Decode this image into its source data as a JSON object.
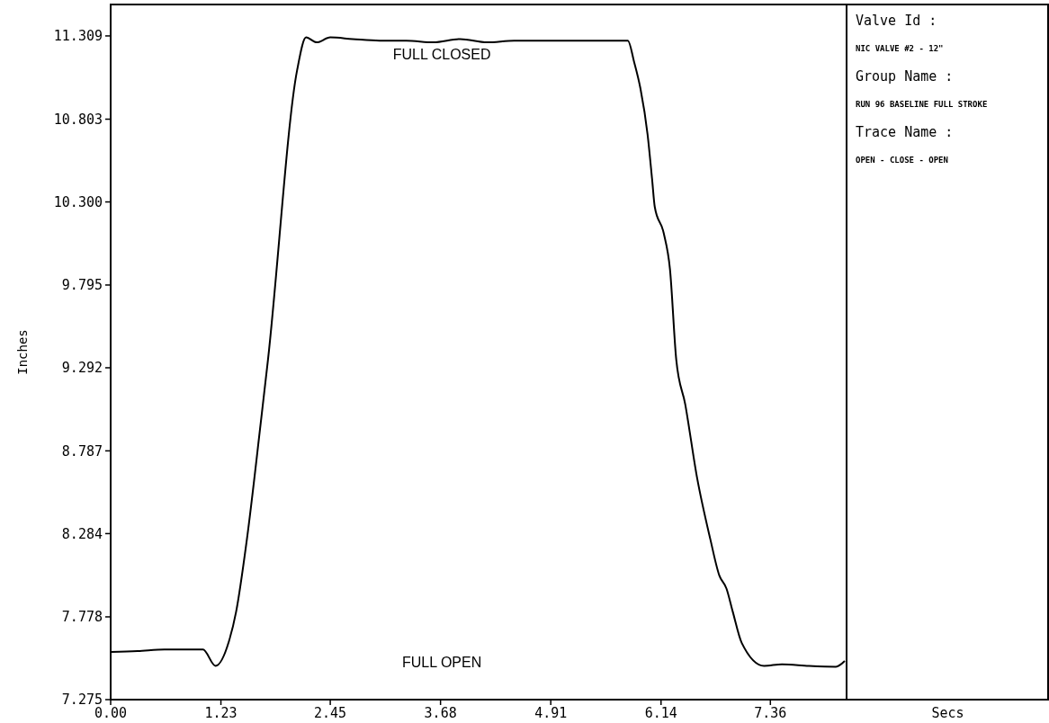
{
  "chart_data": {
    "type": "line",
    "ylabel": "Inches",
    "xlim": [
      0,
      8.21
    ],
    "xticks": [
      {
        "value": 0,
        "label": "0.00"
      },
      {
        "value": 1.23,
        "label": "1.23"
      },
      2.45,
      3.68,
      4.91,
      6.14,
      7.36
    ],
    "ylim": [
      7.275,
      11.5
    ],
    "yticks": [
      7.275,
      7.778,
      8.284,
      8.787,
      9.292,
      9.795,
      {
        "value": 10.3,
        "label": "10.300"
      },
      10.803,
      11.309
    ],
    "series": [
      {
        "color": "#000000",
        "x": [
          0,
          0.3,
          0.6,
          1.03,
          1.17,
          1.32,
          1.4,
          1.52,
          1.675,
          1.755,
          2.08,
          2.18,
          2.3,
          2.45,
          2.7,
          3.0,
          3.3,
          3.6,
          3.9,
          4.2,
          4.5,
          4.8,
          5.2,
          5.6,
          5.77,
          5.84,
          5.91,
          5.99,
          6.04,
          6.07,
          6.17,
          6.24,
          6.31,
          6.41,
          6.54,
          6.69,
          6.79,
          6.87,
          6.94,
          7.04,
          7.29,
          7.49,
          7.79,
          8.09,
          8.19
        ],
        "values": [
          7.565,
          7.57,
          7.58,
          7.58,
          7.48,
          7.63,
          7.81,
          8.25,
          8.96,
          9.34,
          11.1,
          11.3,
          11.27,
          11.3,
          11.29,
          11.28,
          11.28,
          11.27,
          11.29,
          11.27,
          11.28,
          11.28,
          11.28,
          11.28,
          11.28,
          11.15,
          10.99,
          10.71,
          10.44,
          10.27,
          10.11,
          9.89,
          9.34,
          9.07,
          8.63,
          8.25,
          8.03,
          7.95,
          7.81,
          7.62,
          7.48,
          7.49,
          7.48,
          7.475,
          7.51
        ]
      }
    ],
    "annotations": [
      "FULL CLOSED",
      "FULL OPEN",
      "Valve Id :",
      "NIC VALVE #2 - 12\"",
      "Group Name :",
      "RUN 96 BASELINE FULL STROKE",
      "Trace Name :",
      "OPEN - CLOSE - OPEN",
      "Secs"
    ],
    "grid": false,
    "marker": "none",
    "line_style": "solid"
  }
}
